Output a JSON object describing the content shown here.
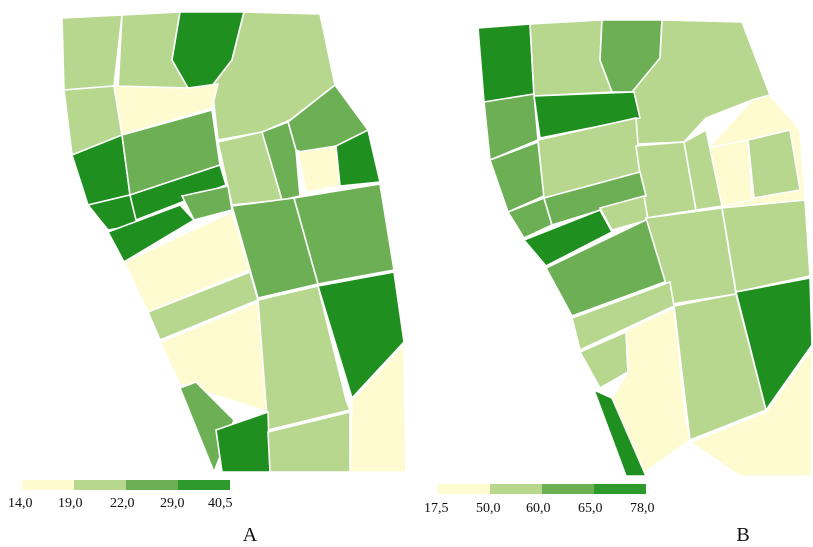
{
  "figure": {
    "panels": [
      {
        "id": "A",
        "label": "A",
        "legend": {
          "breaks": [
            "14,0",
            "19,0",
            "22,0",
            "29,0",
            "40,5"
          ],
          "colors": [
            "#fdfbcf",
            "#b6d78d",
            "#6daf55",
            "#2e9a2e"
          ]
        }
      },
      {
        "id": "B",
        "label": "B",
        "legend": {
          "breaks": [
            "17,5",
            "50,0",
            "60,0",
            "65,0",
            "78,0"
          ],
          "colors": [
            "#fdfbcf",
            "#b6d78d",
            "#6daf55",
            "#2e9a2e"
          ]
        }
      }
    ]
  },
  "palette": {
    "class1": "#fdfbcf",
    "class2": "#b6d78d",
    "class3": "#6daf55",
    "class4": "#1f8f1f",
    "field_border": "#ffffff",
    "text": "#111111"
  }
}
